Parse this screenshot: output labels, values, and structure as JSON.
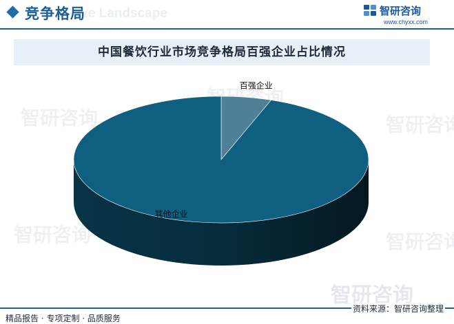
{
  "header": {
    "title": "竞争格局",
    "watermark": "ive Landscape"
  },
  "brand": {
    "name": "智研咨询",
    "url": "www.chyxx.com"
  },
  "chart_data": {
    "type": "pie",
    "title": "中国餐饮行业市场竞争格局百强企业占比情况",
    "slices": [
      {
        "label": "百强企业",
        "value": 5.5,
        "color": "#4f8098"
      },
      {
        "label": "其他企业",
        "value": 94.5,
        "color": "#0e5f80"
      }
    ],
    "style": "3d"
  },
  "watermark_text": "智研咨询",
  "footer": {
    "left": "精品报告 · 专项定制 · 品质服务",
    "source": "资料来源：智研咨询整理"
  }
}
